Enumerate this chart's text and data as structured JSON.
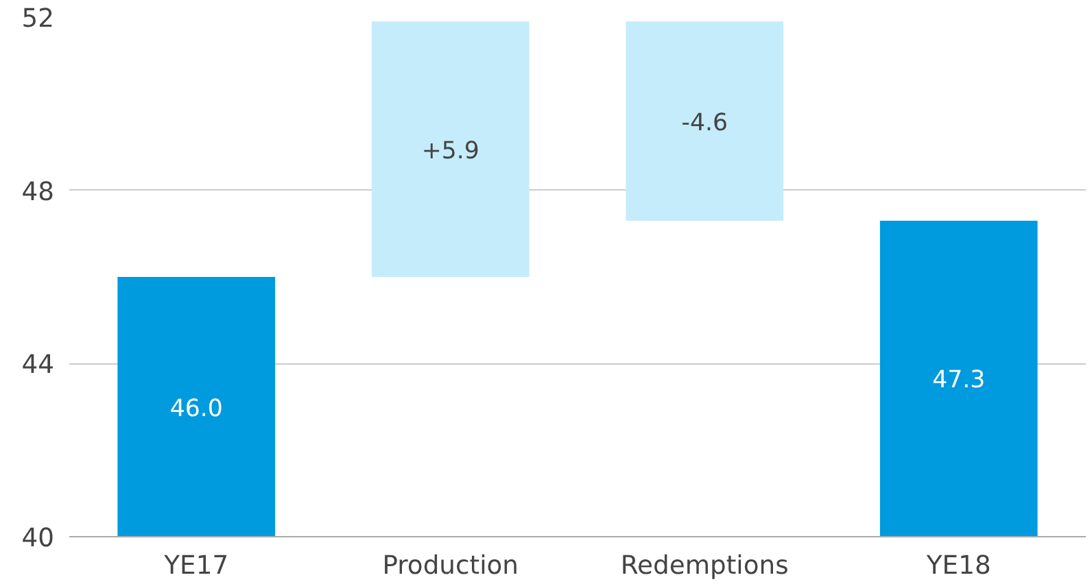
{
  "chart_data": {
    "type": "bar",
    "categories": [
      "YE17",
      "Production",
      "Redemptions",
      "YE18"
    ],
    "values": [
      46.0,
      5.9,
      -4.6,
      47.3
    ],
    "base": [
      null,
      46.0,
      51.9,
      null
    ],
    "colors": [
      "#009ade",
      "#c5ecfb",
      "#c5ecfb",
      "#009ade"
    ],
    "value_labels": [
      "46.0",
      "+5.9",
      "-4.6",
      "47.3"
    ],
    "ylim": [
      40,
      52
    ],
    "yticks": [
      40,
      44,
      48,
      52
    ],
    "grid": "y"
  }
}
